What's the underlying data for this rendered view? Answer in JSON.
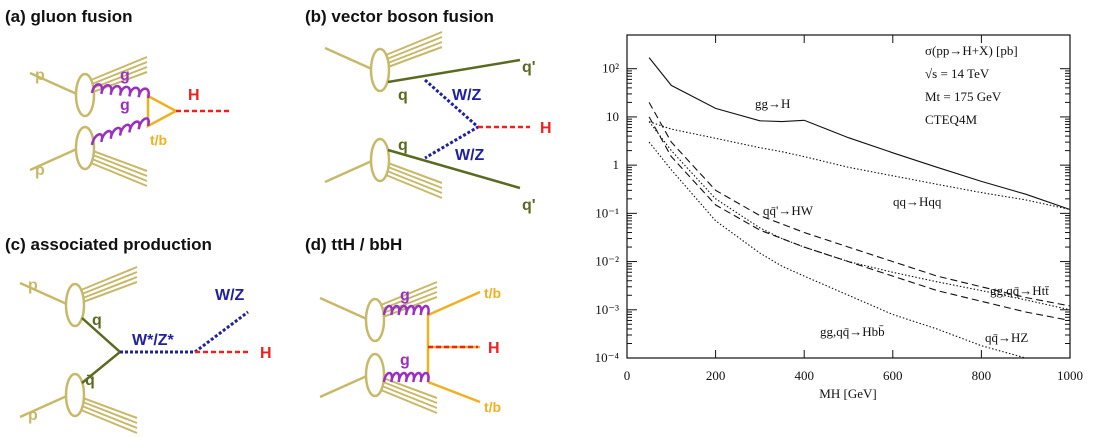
{
  "diagrams": [
    {
      "title": "(a) gluon fusion",
      "labels": [
        "p",
        "p",
        "g",
        "g",
        "t/b",
        "H"
      ]
    },
    {
      "title": "(b) vector boson fusion",
      "labels": [
        "q",
        "q",
        "W/Z",
        "W/Z",
        "H",
        "q'",
        "q'"
      ]
    },
    {
      "title": "(c) associated production",
      "labels": [
        "p",
        "p",
        "q",
        "q̄",
        "W*/Z*",
        "W/Z",
        "H"
      ]
    },
    {
      "title": "(d) ttH / bbH",
      "labels": [
        "g",
        "g",
        "t/b",
        "t/b",
        "H"
      ]
    }
  ],
  "chart_data": {
    "type": "line",
    "annotations": [
      "σ(pp→H+X) [pb]",
      "√s = 14 TeV",
      "Mt = 175 GeV",
      "CTEQ4M"
    ],
    "x_label": "MH [GeV]",
    "x": [
      50,
      100,
      200,
      300,
      350,
      400,
      500,
      600,
      700,
      800,
      900,
      1000
    ],
    "series": [
      {
        "name": "gg→H",
        "color": "#111111",
        "dash": "solid",
        "values": [
          170,
          45,
          15,
          8.3,
          8,
          8.5,
          3.7,
          1.8,
          0.9,
          0.46,
          0.25,
          0.12
        ]
      },
      {
        "name": "qq→Hqq",
        "color": "#111111",
        "dash": "dotted",
        "values": [
          8,
          5.6,
          3.6,
          2.3,
          1.9,
          1.5,
          0.9,
          0.6,
          0.4,
          0.27,
          0.19,
          0.12
        ]
      },
      {
        "name": "qq̄'→HW",
        "color": "#111111",
        "dash": "dashed",
        "values": [
          20,
          3,
          0.3,
          0.09,
          0.06,
          0.04,
          0.02,
          0.01,
          0.005,
          0.003,
          0.0018,
          0.0012
        ]
      },
      {
        "name": "gg,qq̄→Htt̄",
        "color": "#111111",
        "dash": "dotted",
        "values": [
          8,
          2,
          0.2,
          0.05,
          0.03,
          0.02,
          0.01,
          0.006,
          0.0038,
          0.0025,
          0.0016,
          0.001
        ]
      },
      {
        "name": "gg,qq̄→Hbb̄",
        "color": "#111111",
        "dash": "dotted",
        "values": [
          3,
          0.8,
          0.07,
          0.015,
          0.008,
          0.005,
          0.002,
          0.0008,
          0.0004,
          0.00018,
          0.0001,
          null
        ]
      },
      {
        "name": "qq̄→HZ",
        "color": "#111111",
        "dash": "dashed",
        "values": [
          10,
          1.5,
          0.15,
          0.045,
          0.03,
          0.02,
          0.01,
          0.005,
          0.0025,
          0.0015,
          0.0009,
          0.0006
        ]
      }
    ],
    "xlim": [
      0,
      1000
    ],
    "xticks": [
      0,
      200,
      400,
      600,
      800,
      1000
    ],
    "ylim": [
      0.0001,
      500
    ],
    "log_y": true,
    "yticks": [
      {
        "value": 100,
        "label": "10²"
      },
      10,
      1,
      {
        "value": 0.1,
        "label": "10⁻¹"
      },
      {
        "value": 0.01,
        "label": "10⁻²"
      },
      {
        "value": 0.001,
        "label": "10⁻³"
      },
      {
        "value": 0.0001,
        "label": "10⁻⁴"
      }
    ]
  }
}
